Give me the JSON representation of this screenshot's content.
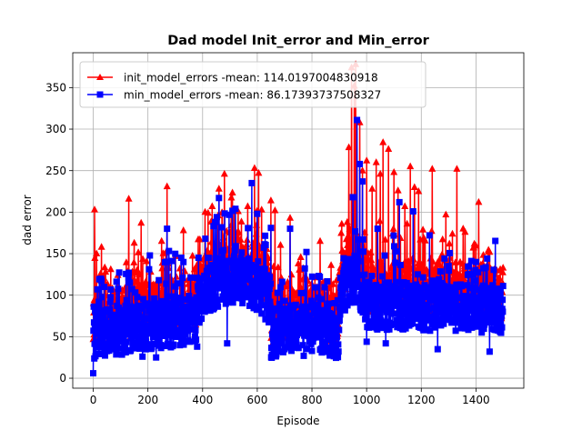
{
  "chart_data": {
    "type": "line",
    "title": "Dad model Init_error and Min_error",
    "xlabel": "Episode",
    "ylabel": "dad error",
    "xlim": [
      -75,
      1575
    ],
    "ylim": [
      -12,
      392
    ],
    "x_ticks": [
      0,
      200,
      400,
      600,
      800,
      1000,
      1200,
      1400
    ],
    "y_ticks": [
      0,
      50,
      100,
      150,
      200,
      250,
      300,
      350
    ],
    "grid": true,
    "legend_position": "upper-left",
    "n_points": 1500,
    "series": [
      {
        "name": "init_model_errors -mean: 114.0197004830918",
        "color": "#ff0000",
        "marker": "triangle-up",
        "mean": 114.0197004830918,
        "peaks": [
          [
            5,
            203
          ],
          [
            12,
            150
          ],
          [
            30,
            158
          ],
          [
            45,
            128
          ],
          [
            70,
            108
          ],
          [
            90,
            124
          ],
          [
            130,
            216
          ],
          [
            150,
            163
          ],
          [
            175,
            187
          ],
          [
            210,
            128
          ],
          [
            250,
            165
          ],
          [
            265,
            151
          ],
          [
            270,
            231
          ],
          [
            330,
            178
          ],
          [
            370,
            131
          ],
          [
            390,
            167
          ],
          [
            420,
            199
          ],
          [
            435,
            207
          ],
          [
            460,
            228
          ],
          [
            480,
            246
          ],
          [
            530,
            201
          ],
          [
            565,
            207
          ],
          [
            590,
            253
          ],
          [
            605,
            247
          ],
          [
            650,
            214
          ],
          [
            665,
            202
          ],
          [
            720,
            193
          ],
          [
            750,
            138
          ],
          [
            830,
            165
          ],
          [
            870,
            136
          ],
          [
            890,
            118
          ],
          [
            935,
            278
          ],
          [
            945,
            374
          ],
          [
            955,
            352
          ],
          [
            960,
            378
          ],
          [
            975,
            308
          ],
          [
            985,
            250
          ],
          [
            1000,
            262
          ],
          [
            1020,
            228
          ],
          [
            1035,
            260
          ],
          [
            1050,
            246
          ],
          [
            1060,
            284
          ],
          [
            1080,
            276
          ],
          [
            1100,
            248
          ],
          [
            1115,
            226
          ],
          [
            1140,
            207
          ],
          [
            1160,
            255
          ],
          [
            1175,
            230
          ],
          [
            1190,
            225
          ],
          [
            1240,
            252
          ],
          [
            1290,
            197
          ],
          [
            1330,
            252
          ],
          [
            1360,
            176
          ],
          [
            1390,
            157
          ],
          [
            1410,
            212
          ],
          [
            1450,
            152
          ],
          [
            1500,
            133
          ]
        ]
      },
      {
        "name": "min_model_errors -mean: 86.17393737508327",
        "color": "#0000ff",
        "marker": "square",
        "mean": 86.17393737508327,
        "peaks": [
          [
            0,
            6
          ],
          [
            20,
            92
          ],
          [
            40,
            110
          ],
          [
            130,
            127
          ],
          [
            180,
            26
          ],
          [
            230,
            25
          ],
          [
            270,
            180
          ],
          [
            330,
            140
          ],
          [
            380,
            38
          ],
          [
            410,
            168
          ],
          [
            460,
            217
          ],
          [
            490,
            42
          ],
          [
            520,
            204
          ],
          [
            580,
            235
          ],
          [
            600,
            198
          ],
          [
            650,
            181
          ],
          [
            700,
            35
          ],
          [
            720,
            180
          ],
          [
            770,
            27
          ],
          [
            780,
            152
          ],
          [
            950,
            218
          ],
          [
            965,
            311
          ],
          [
            975,
            258
          ],
          [
            985,
            237
          ],
          [
            1000,
            44
          ],
          [
            1040,
            180
          ],
          [
            1070,
            42
          ],
          [
            1120,
            212
          ],
          [
            1170,
            201
          ],
          [
            1230,
            172
          ],
          [
            1260,
            35
          ],
          [
            1300,
            135
          ],
          [
            1400,
            140
          ],
          [
            1450,
            32
          ]
        ]
      }
    ]
  }
}
